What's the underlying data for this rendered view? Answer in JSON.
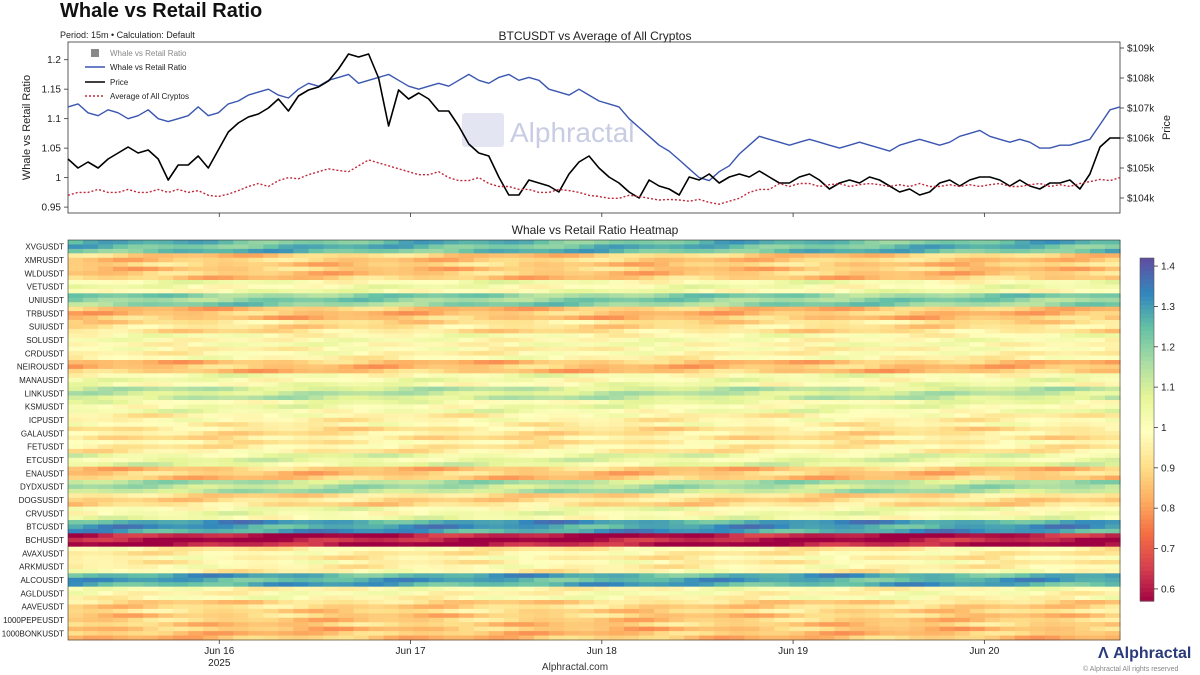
{
  "page": {
    "title": "Whale vs Retail Ratio",
    "subtitle": "Period: 15m • Calculation: Default",
    "source": "Alphractal.com",
    "brand": "Alphractal",
    "copyright": "© Alphractal All rights reserved"
  },
  "colors": {
    "whale_line": "#3a56b0",
    "price_line": "#000000",
    "average_line": "#c0283a",
    "legend_square": "#888888"
  },
  "chart_data": [
    {
      "type": "line",
      "title": "BTCUSDT vs Average of All Cryptos",
      "ylabel": "Whale vs Retail Ratio",
      "ylabel_right": "Price",
      "ylim": [
        0.94,
        1.23
      ],
      "y_ticks": [
        "0.95",
        "1",
        "1.05",
        "1.1",
        "1.15",
        "1.2"
      ],
      "y_tick_values": [
        0.95,
        1.0,
        1.05,
        1.1,
        1.15,
        1.2
      ],
      "y2lim": [
        103500,
        109200
      ],
      "y2_ticks": [
        "$104k",
        "$105k",
        "$106k",
        "$107k",
        "$108k",
        "$109k"
      ],
      "y2_tick_values": [
        104000,
        105000,
        106000,
        107000,
        108000,
        109000
      ],
      "x_label_watermark": "Alphractal",
      "legend": {
        "position": "top-left",
        "entries": [
          "Whale vs Retail Ratio",
          "Whale vs Retail Ratio",
          "Price",
          "Average of All Cryptos"
        ]
      },
      "series": [
        {
          "name": "Whale vs Retail Ratio",
          "x": [
            0.0,
            0.05,
            0.1,
            0.15,
            0.2,
            0.25,
            0.3,
            0.35,
            0.4,
            0.45,
            0.5,
            0.55,
            0.6,
            0.65,
            0.7,
            0.75,
            0.8,
            0.85,
            0.9,
            0.95,
            1.0,
            1.05,
            1.1,
            1.15,
            1.2,
            1.25,
            1.3,
            1.35,
            1.4,
            1.45,
            1.5,
            1.55,
            1.6,
            1.65,
            1.7,
            1.75,
            1.8,
            1.85,
            1.9,
            1.95,
            2.0,
            2.05,
            2.1,
            2.15,
            2.2,
            2.25,
            2.3,
            2.35,
            2.4,
            2.45,
            2.5,
            2.55,
            2.6,
            2.65,
            2.7,
            2.75,
            2.8,
            2.85,
            2.9,
            2.95,
            3.0,
            3.05,
            3.1,
            3.15,
            3.2,
            3.25,
            3.3,
            3.35,
            3.4,
            3.45,
            3.5,
            3.55,
            3.6,
            3.65,
            3.7,
            3.75,
            3.8,
            3.85,
            3.9,
            3.95,
            4.0,
            4.05,
            4.1,
            4.15,
            4.2,
            4.25,
            4.3,
            4.35,
            4.4,
            4.45,
            4.5,
            4.55,
            4.6,
            4.65,
            4.7,
            4.75,
            4.8,
            4.85,
            4.9,
            4.95,
            5.0,
            5.05,
            5.1,
            5.15,
            5.2,
            5.25
          ],
          "values": [
            1.12,
            1.125,
            1.11,
            1.105,
            1.115,
            1.11,
            1.1,
            1.105,
            1.115,
            1.1,
            1.095,
            1.1,
            1.105,
            1.12,
            1.105,
            1.11,
            1.125,
            1.13,
            1.14,
            1.145,
            1.15,
            1.14,
            1.135,
            1.15,
            1.16,
            1.155,
            1.165,
            1.17,
            1.175,
            1.16,
            1.165,
            1.17,
            1.175,
            1.165,
            1.155,
            1.15,
            1.155,
            1.16,
            1.155,
            1.165,
            1.175,
            1.165,
            1.16,
            1.17,
            1.175,
            1.165,
            1.17,
            1.165,
            1.15,
            1.145,
            1.14,
            1.15,
            1.14,
            1.13,
            1.125,
            1.12,
            1.1,
            1.085,
            1.07,
            1.055,
            1.045,
            1.03,
            1.015,
            1.0,
            0.995,
            1.01,
            1.02,
            1.04,
            1.055,
            1.07,
            1.065,
            1.06,
            1.055,
            1.06,
            1.065,
            1.06,
            1.055,
            1.05,
            1.055,
            1.06,
            1.055,
            1.05,
            1.045,
            1.055,
            1.06,
            1.065,
            1.06,
            1.055,
            1.06,
            1.07,
            1.075,
            1.08,
            1.07,
            1.065,
            1.06,
            1.065,
            1.06,
            1.05,
            1.05,
            1.055,
            1.055,
            1.06,
            1.065,
            1.09,
            1.115,
            1.12
          ]
        },
        {
          "name": "Price",
          "axis": "right",
          "x": [
            0.0,
            0.05,
            0.1,
            0.15,
            0.2,
            0.25,
            0.3,
            0.35,
            0.4,
            0.45,
            0.5,
            0.55,
            0.6,
            0.65,
            0.7,
            0.75,
            0.8,
            0.85,
            0.9,
            0.95,
            1.0,
            1.05,
            1.1,
            1.15,
            1.2,
            1.25,
            1.3,
            1.35,
            1.4,
            1.45,
            1.5,
            1.55,
            1.6,
            1.65,
            1.7,
            1.75,
            1.8,
            1.85,
            1.9,
            1.95,
            2.0,
            2.05,
            2.1,
            2.15,
            2.2,
            2.25,
            2.3,
            2.35,
            2.4,
            2.45,
            2.5,
            2.55,
            2.6,
            2.65,
            2.7,
            2.75,
            2.8,
            2.85,
            2.9,
            2.95,
            3.0,
            3.05,
            3.1,
            3.15,
            3.2,
            3.25,
            3.3,
            3.35,
            3.4,
            3.45,
            3.5,
            3.55,
            3.6,
            3.65,
            3.7,
            3.75,
            3.8,
            3.85,
            3.9,
            3.95,
            4.0,
            4.05,
            4.1,
            4.15,
            4.2,
            4.25,
            4.3,
            4.35,
            4.4,
            4.45,
            4.5,
            4.55,
            4.6,
            4.65,
            4.7,
            4.75,
            4.8,
            4.85,
            4.9,
            4.95,
            5.0,
            5.05,
            5.1,
            5.15,
            5.2,
            5.25
          ],
          "values": [
            105300,
            105000,
            105200,
            105000,
            105300,
            105500,
            105700,
            105500,
            105600,
            105300,
            104600,
            105100,
            105100,
            105400,
            105000,
            105600,
            106200,
            106500,
            106700,
            106800,
            107000,
            107300,
            106900,
            107400,
            107600,
            107700,
            107900,
            108300,
            108800,
            108700,
            108800,
            108000,
            106400,
            107600,
            107300,
            107500,
            107300,
            106900,
            106900,
            106400,
            105800,
            105500,
            105400,
            104700,
            104100,
            104100,
            104600,
            104500,
            104400,
            104200,
            104800,
            105200,
            105400,
            105000,
            104700,
            104500,
            104200,
            104000,
            104600,
            104400,
            104300,
            104100,
            104700,
            104600,
            104800,
            104500,
            104700,
            104800,
            104700,
            104900,
            104700,
            104500,
            104500,
            104700,
            104800,
            104600,
            104300,
            104500,
            104600,
            104500,
            104700,
            104600,
            104400,
            104200,
            104300,
            104100,
            104200,
            104500,
            104600,
            104400,
            104600,
            104700,
            104700,
            104600,
            104400,
            104600,
            104400,
            104300,
            104500,
            104500,
            104600,
            104300,
            104800,
            105700,
            106000,
            106000
          ]
        },
        {
          "name": "Average of All Cryptos",
          "x": [
            0.0,
            0.05,
            0.1,
            0.15,
            0.2,
            0.25,
            0.3,
            0.35,
            0.4,
            0.45,
            0.5,
            0.55,
            0.6,
            0.65,
            0.7,
            0.75,
            0.8,
            0.85,
            0.9,
            0.95,
            1.0,
            1.05,
            1.1,
            1.15,
            1.2,
            1.25,
            1.3,
            1.35,
            1.4,
            1.45,
            1.5,
            1.55,
            1.6,
            1.65,
            1.7,
            1.75,
            1.8,
            1.85,
            1.9,
            1.95,
            2.0,
            2.05,
            2.1,
            2.15,
            2.2,
            2.25,
            2.3,
            2.35,
            2.4,
            2.45,
            2.5,
            2.55,
            2.6,
            2.65,
            2.7,
            2.75,
            2.8,
            2.85,
            2.9,
            2.95,
            3.0,
            3.05,
            3.1,
            3.15,
            3.2,
            3.25,
            3.3,
            3.35,
            3.4,
            3.45,
            3.5,
            3.55,
            3.6,
            3.65,
            3.7,
            3.75,
            3.8,
            3.85,
            3.9,
            3.95,
            4.0,
            4.05,
            4.1,
            4.15,
            4.2,
            4.25,
            4.3,
            4.35,
            4.4,
            4.45,
            4.5,
            4.55,
            4.6,
            4.65,
            4.7,
            4.75,
            4.8,
            4.85,
            4.9,
            4.95,
            5.0,
            5.05,
            5.1,
            5.15,
            5.2,
            5.25
          ],
          "values": [
            0.97,
            0.975,
            0.975,
            0.98,
            0.975,
            0.975,
            0.98,
            0.975,
            0.975,
            0.98,
            0.975,
            0.98,
            0.975,
            0.978,
            0.97,
            0.968,
            0.972,
            0.978,
            0.985,
            0.99,
            0.985,
            0.995,
            1.0,
            0.998,
            1.005,
            1.01,
            1.015,
            1.012,
            1.01,
            1.02,
            1.03,
            1.025,
            1.02,
            1.015,
            1.01,
            1.005,
            1.005,
            1.01,
            1.0,
            0.995,
            0.995,
            1.0,
            0.99,
            0.985,
            0.985,
            0.98,
            0.98,
            0.975,
            0.975,
            0.98,
            0.978,
            0.975,
            0.97,
            0.968,
            0.965,
            0.965,
            0.97,
            0.968,
            0.965,
            0.962,
            0.963,
            0.962,
            0.96,
            0.963,
            0.958,
            0.955,
            0.96,
            0.965,
            0.975,
            0.98,
            0.98,
            0.99,
            0.985,
            0.99,
            0.99,
            0.985,
            0.988,
            0.99,
            0.985,
            0.988,
            0.99,
            0.988,
            0.985,
            0.988,
            0.985,
            0.99,
            0.985,
            0.985,
            0.988,
            0.985,
            0.988,
            0.985,
            0.988,
            0.99,
            0.985,
            0.985,
            0.988,
            0.99,
            0.985,
            0.988,
            0.985,
            0.99,
            0.993,
            0.997,
            0.995,
            1.0
          ]
        }
      ]
    },
    {
      "type": "heatmap",
      "title": "Whale vs Retail Ratio Heatmap",
      "xlabel": "Alphractal.com",
      "x_ticks": [
        "Jun 16",
        "Jun 17",
        "Jun 18",
        "Jun 19",
        "Jun 20"
      ],
      "x_tick_values": [
        1,
        2,
        3,
        4,
        5
      ],
      "x_year_label": "2025",
      "xlim": [
        0,
        5.5
      ],
      "colorbar": {
        "ticks": [
          "0.6",
          "0.7",
          "0.8",
          "0.9",
          "1",
          "1.1",
          "1.2",
          "1.3",
          "1.4"
        ],
        "tick_values": [
          0.6,
          0.7,
          0.8,
          0.9,
          1.0,
          1.1,
          1.2,
          1.3,
          1.4
        ],
        "range": [
          0.57,
          1.42
        ]
      },
      "rows_top_to_bottom": [
        "XVGUSDT",
        "XMRUSDT",
        "WLDUSDT",
        "VETUSDT",
        "UNIUSDT",
        "TRBUSDT",
        "SUIUSDT",
        "SOLUSDT",
        "CRDUSDT",
        "NEIROUSDT",
        "MANAUSDT",
        "LINKUSDT",
        "KSMUSDT",
        "ICPUSDT",
        "GALAUSDT",
        "FETUSDT",
        "ETCUSDT",
        "ENAUSDT",
        "DYDXUSDT",
        "DOGSUSDT",
        "CRVUSDT",
        "BTCUSDT",
        "BCHUSDT",
        "AVAXUSDT",
        "ARKMUSDT",
        "ALCOUSDT",
        "AGLDUSDT",
        "AAVEUSDT",
        "1000PEPEUSDT",
        "1000BONKUSDT"
      ],
      "row_levels": [
        1.25,
        0.88,
        0.87,
        1.02,
        1.2,
        0.86,
        0.92,
        1.0,
        0.98,
        0.86,
        1.02,
        1.12,
        1.03,
        0.97,
        0.93,
        0.95,
        1.06,
        0.87,
        1.15,
        0.91,
        1.03,
        1.3,
        0.6,
        0.96,
        0.97,
        1.28,
        0.99,
        0.9,
        0.88,
        0.86
      ],
      "strips_per_row": 3
    }
  ]
}
